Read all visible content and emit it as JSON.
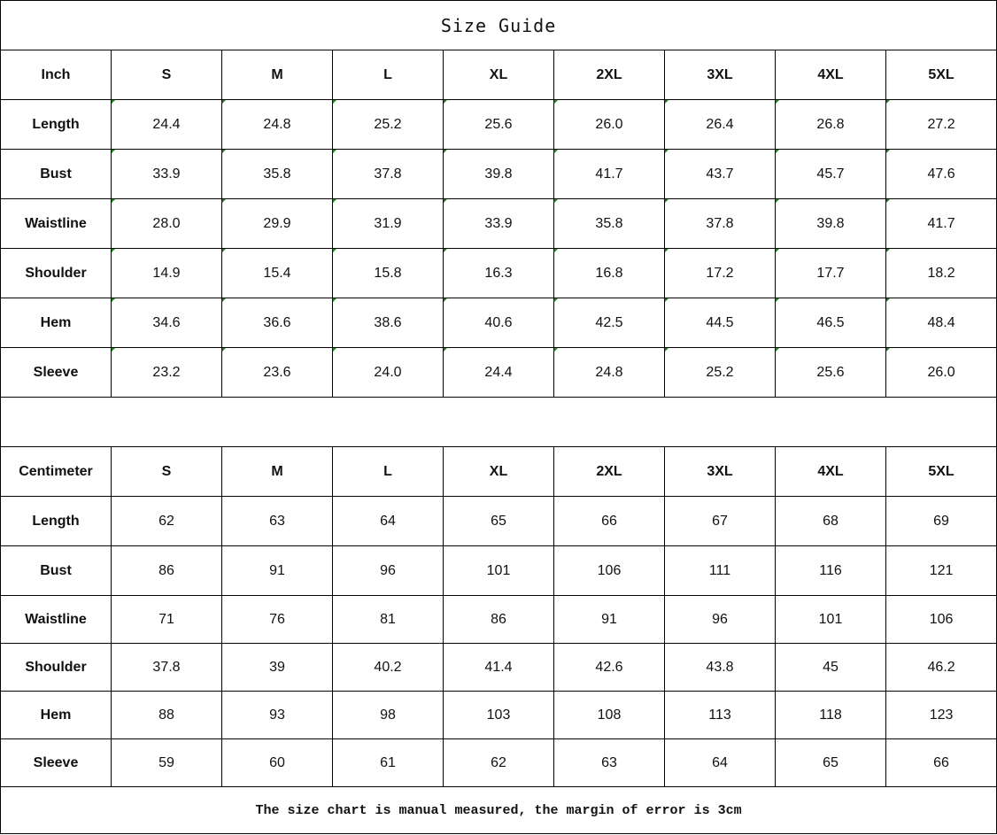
{
  "title": "Size Guide",
  "inch": {
    "unit_label": "Inch",
    "sizes": [
      "S",
      "M",
      "L",
      "XL",
      "2XL",
      "3XL",
      "4XL",
      "5XL"
    ],
    "rows": [
      {
        "label": "Length",
        "values": [
          "24.4",
          "24.8",
          "25.2",
          "25.6",
          "26.0",
          "26.4",
          "26.8",
          "27.2"
        ]
      },
      {
        "label": "Bust",
        "values": [
          "33.9",
          "35.8",
          "37.8",
          "39.8",
          "41.7",
          "43.7",
          "45.7",
          "47.6"
        ]
      },
      {
        "label": "Waistline",
        "values": [
          "28.0",
          "29.9",
          "31.9",
          "33.9",
          "35.8",
          "37.8",
          "39.8",
          "41.7"
        ]
      },
      {
        "label": "Shoulder",
        "values": [
          "14.9",
          "15.4",
          "15.8",
          "16.3",
          "16.8",
          "17.2",
          "17.7",
          "18.2"
        ]
      },
      {
        "label": "Hem",
        "values": [
          "34.6",
          "36.6",
          "38.6",
          "40.6",
          "42.5",
          "44.5",
          "46.5",
          "48.4"
        ]
      },
      {
        "label": "Sleeve",
        "values": [
          "23.2",
          "23.6",
          "24.0",
          "24.4",
          "24.8",
          "25.2",
          "25.6",
          "26.0"
        ]
      }
    ]
  },
  "cm": {
    "unit_label": "Centimeter",
    "sizes": [
      "S",
      "M",
      "L",
      "XL",
      "2XL",
      "3XL",
      "4XL",
      "5XL"
    ],
    "rows": [
      {
        "label": "Length",
        "values": [
          "62",
          "63",
          "64",
          "65",
          "66",
          "67",
          "68",
          "69"
        ]
      },
      {
        "label": "Bust",
        "values": [
          "86",
          "91",
          "96",
          "101",
          "106",
          "111",
          "116",
          "121"
        ]
      },
      {
        "label": "Waistline",
        "values": [
          "71",
          "76",
          "81",
          "86",
          "91",
          "96",
          "101",
          "106"
        ]
      },
      {
        "label": "Shoulder",
        "values": [
          "37.8",
          "39",
          "40.2",
          "41.4",
          "42.6",
          "43.8",
          "45",
          "46.2"
        ]
      },
      {
        "label": "Hem",
        "values": [
          "88",
          "93",
          "98",
          "103",
          "108",
          "113",
          "118",
          "123"
        ]
      },
      {
        "label": "Sleeve",
        "values": [
          "59",
          "60",
          "61",
          "62",
          "63",
          "64",
          "65",
          "66"
        ]
      }
    ]
  },
  "footer": "The size chart is manual measured, the margin of error is 3cm",
  "colors": {
    "cell_marker": "#1a8c1a",
    "border": "#000000"
  }
}
